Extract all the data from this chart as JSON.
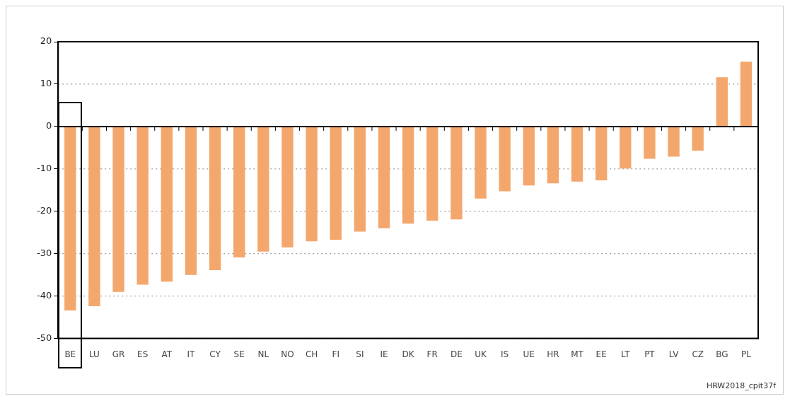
{
  "chart_data": {
    "type": "bar",
    "categories": [
      "BE",
      "LU",
      "GR",
      "ES",
      "AT",
      "IT",
      "CY",
      "SE",
      "NL",
      "NO",
      "CH",
      "FI",
      "SI",
      "IE",
      "DK",
      "FR",
      "DE",
      "UK",
      "IS",
      "UE",
      "HR",
      "MT",
      "EE",
      "LT",
      "PT",
      "LV",
      "CZ",
      "BG",
      "PL"
    ],
    "values": [
      -43.4,
      -42.4,
      -39,
      -37.3,
      -36.6,
      -35,
      -33.9,
      -30.9,
      -29.5,
      -28.5,
      -27.1,
      -26.7,
      -24.8,
      -24,
      -22.9,
      -22.2,
      -21.9,
      -17,
      -15.3,
      -13.9,
      -13.4,
      -13,
      -12.7,
      -9.9,
      -7.6,
      -7.1,
      -5.7,
      11.6,
      15.3
    ],
    "color": "#f4a76d",
    "ylim": [
      -50,
      20
    ],
    "yticks": [
      -50,
      -40,
      -30,
      -20,
      -10,
      0,
      10,
      20
    ],
    "grid": "y",
    "annotations": [
      "HRW2018_cpit37f"
    ]
  }
}
